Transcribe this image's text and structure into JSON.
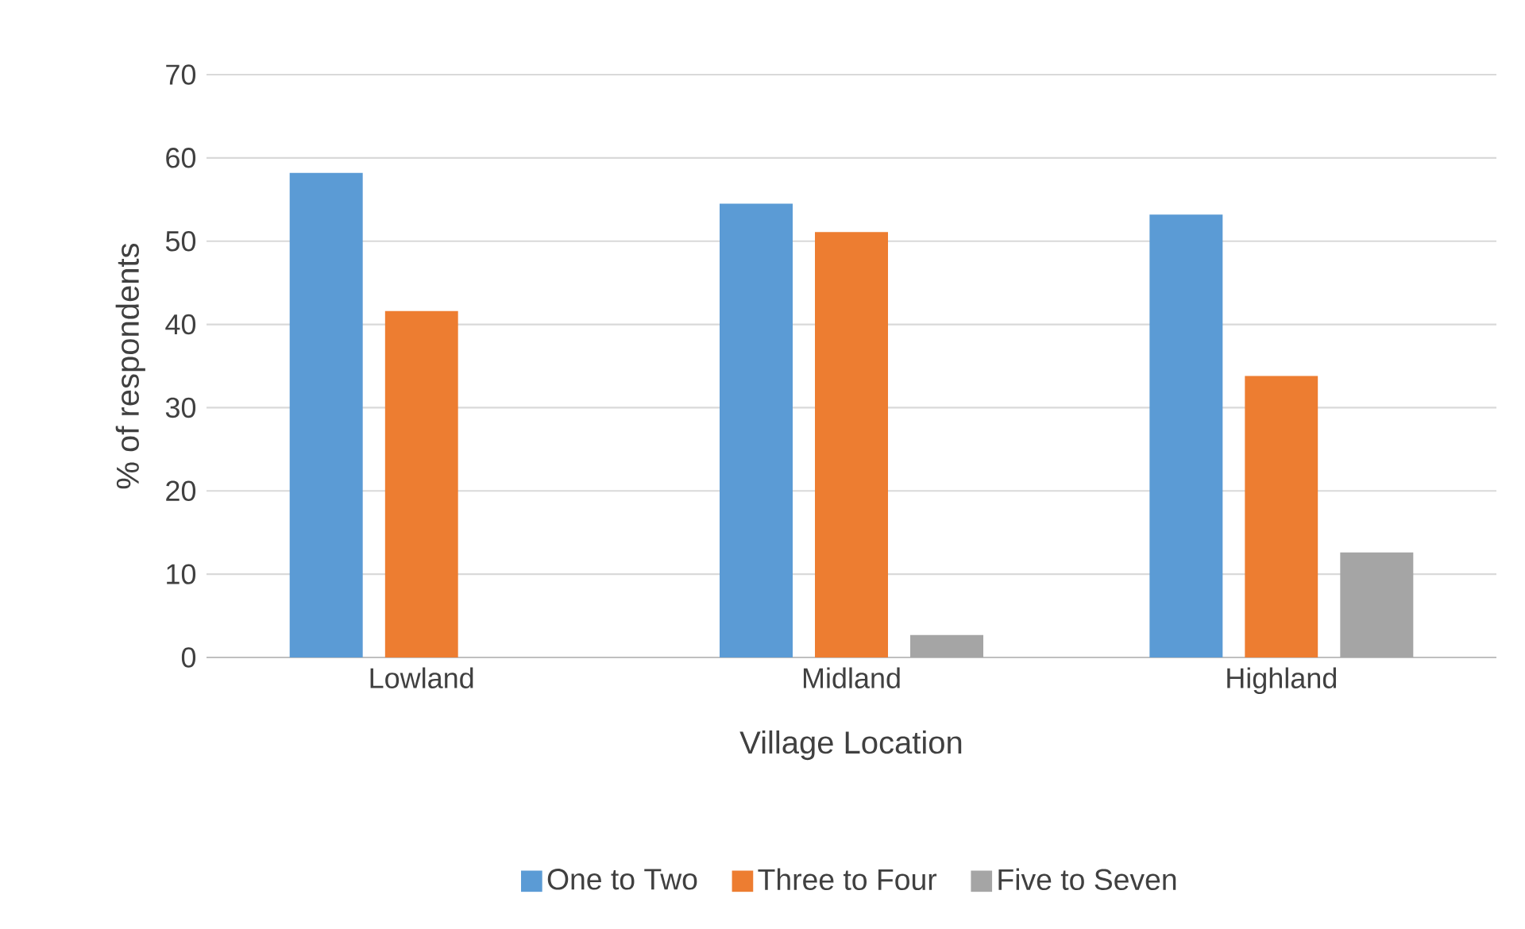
{
  "chart_data": {
    "type": "bar",
    "xlabel": "Village Location",
    "ylabel": "% of respondents",
    "categories": [
      "Lowland",
      "Midland",
      "Highland"
    ],
    "series": [
      {
        "name": "One to Two",
        "color": "#5b9bd5",
        "values": [
          58.2,
          54.5,
          53.2
        ]
      },
      {
        "name": "Three to Four",
        "color": "#ed7d31",
        "values": [
          41.6,
          51.1,
          33.8
        ]
      },
      {
        "name": "Five to Seven",
        "color": "#a5a5a5",
        "values": [
          0,
          2.7,
          12.6
        ]
      }
    ],
    "ylim": [
      0,
      70
    ],
    "yticks": [
      0,
      10,
      20,
      30,
      40,
      50,
      60,
      70
    ],
    "grid": "y",
    "legend": "bottom"
  }
}
